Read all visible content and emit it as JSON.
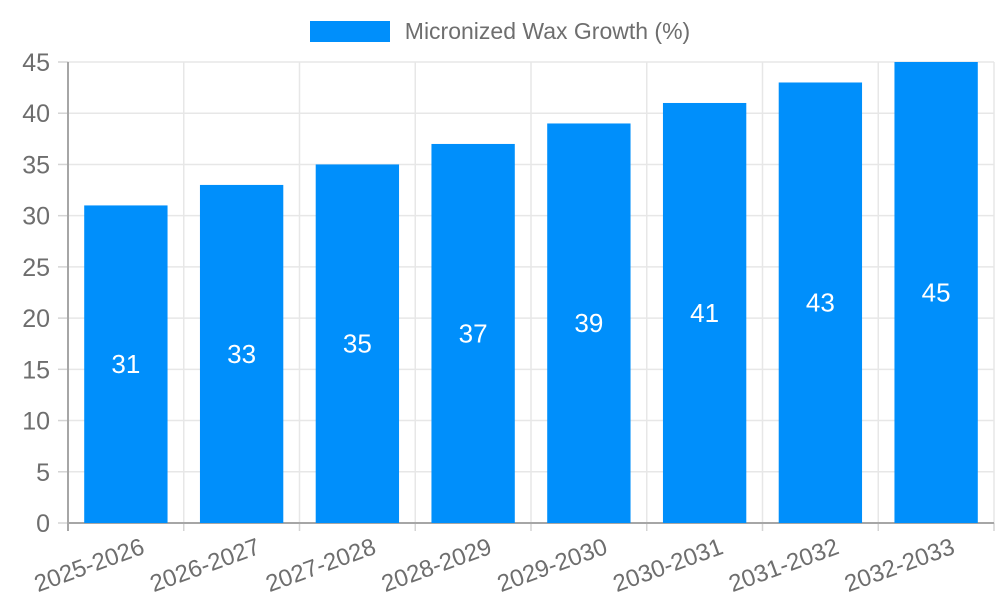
{
  "chart_data": {
    "type": "bar",
    "title": "Micronized Wax Growth (%)",
    "legend": {
      "label": "Micronized Wax Growth (%)",
      "position": "top-center"
    },
    "categories": [
      "2025-2026",
      "2026-2027",
      "2027-2028",
      "2028-2029",
      "2029-2030",
      "2030-2031",
      "2031-2032",
      "2032-2033"
    ],
    "series": [
      {
        "name": "Micronized Wax Growth (%)",
        "values": [
          31,
          33,
          35,
          37,
          39,
          41,
          43,
          45
        ],
        "color": "#008ffb"
      }
    ],
    "xlabel": "",
    "ylabel": "",
    "ylim": [
      0,
      45
    ],
    "yticks": [
      0,
      5,
      10,
      15,
      20,
      25,
      30,
      35,
      40,
      45
    ],
    "grid": true,
    "x_tick_rotation_deg": -20,
    "value_labels": {
      "position": "inside-center",
      "color": "#ffffff"
    },
    "colors": {
      "bar": "#008ffb",
      "grid_line": "#e7e7e7",
      "tick_mark": "#d4d4d4",
      "axis_line": "#a6a6a6",
      "axis_text": "#6e6e6e",
      "legend_text": "#6e6e6e",
      "background": "#ffffff"
    }
  }
}
